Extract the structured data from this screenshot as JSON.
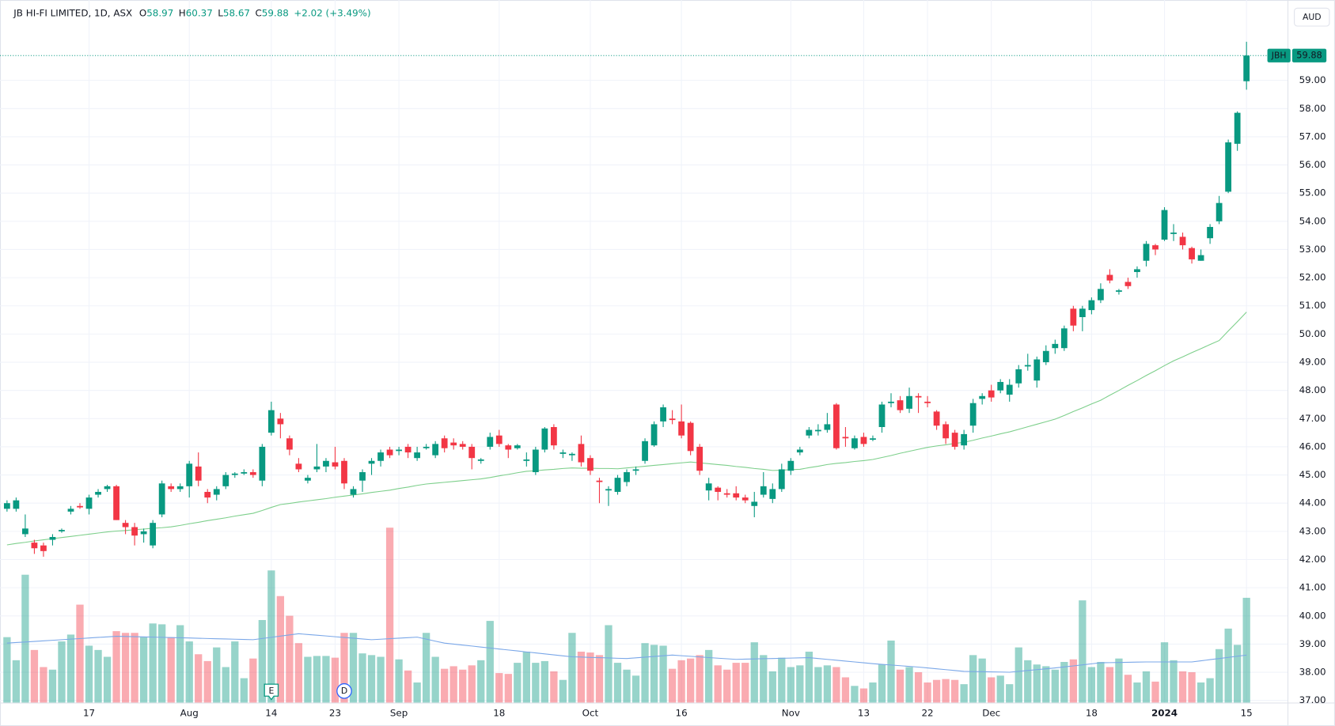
{
  "chart_data": {
    "type": "candlestick",
    "title": "JB HI-FI LIMITED, 1D, ASX",
    "ohlc_labels": [
      "O",
      "H",
      "L",
      "C"
    ],
    "change": "+2.02 (+3.49%)",
    "symbol": "JBH",
    "currency": "AUD",
    "up_color": "#089981",
    "down_color": "#f23645",
    "ma_color": "#7dcf8b",
    "volume_ma_color": "#7aa7e8",
    "grid": true,
    "ylim": [
      36.91,
      61.7
    ],
    "yticks": [
      {
        "value": 37,
        "label": "37.00"
      },
      {
        "value": 38,
        "label": "38.00"
      },
      {
        "value": 39,
        "label": "39.00"
      },
      {
        "value": 40,
        "label": "40.00"
      },
      {
        "value": 41,
        "label": "41.00"
      },
      {
        "value": 42,
        "label": "42.00"
      },
      {
        "value": 43,
        "label": "43.00"
      },
      {
        "value": 44,
        "label": "44.00"
      },
      {
        "value": 45,
        "label": "45.00"
      },
      {
        "value": 46,
        "label": "46.00"
      },
      {
        "value": 47,
        "label": "47.00"
      },
      {
        "value": 48,
        "label": "48.00"
      },
      {
        "value": 49,
        "label": "49.00"
      },
      {
        "value": 50,
        "label": "50.00"
      },
      {
        "value": 51,
        "label": "51.00"
      },
      {
        "value": 52,
        "label": "52.00"
      },
      {
        "value": 53,
        "label": "53.00"
      },
      {
        "value": 54,
        "label": "54.00"
      },
      {
        "value": 55,
        "label": "55.00"
      },
      {
        "value": 56,
        "label": "56.00"
      },
      {
        "value": 57,
        "label": "57.00"
      },
      {
        "value": 58,
        "label": "58.00"
      },
      {
        "value": 59,
        "label": "59.00"
      }
    ],
    "categories": [
      null,
      null,
      null,
      null,
      null,
      null,
      null,
      null,
      null,
      "17",
      null,
      null,
      null,
      null,
      null,
      null,
      null,
      null,
      null,
      null,
      "Aug",
      null,
      null,
      null,
      null,
      null,
      null,
      null,
      null,
      "14",
      null,
      null,
      null,
      null,
      null,
      null,
      "23",
      null,
      null,
      null,
      null,
      null,
      null,
      "Sep",
      null,
      null,
      null,
      null,
      null,
      null,
      null,
      null,
      null,
      null,
      "18",
      null,
      null,
      null,
      null,
      null,
      null,
      null,
      null,
      null,
      "Oct",
      null,
      null,
      null,
      null,
      null,
      null,
      null,
      null,
      null,
      "16",
      null,
      null,
      null,
      null,
      null,
      null,
      null,
      null,
      null,
      null,
      null,
      "Nov",
      null,
      null,
      null,
      null,
      null,
      null,
      null,
      "13",
      null,
      null,
      null,
      null,
      null,
      null,
      "22",
      null,
      null,
      null,
      null,
      null,
      null,
      "Dec",
      null,
      null,
      null,
      null,
      null,
      null,
      null,
      null,
      null,
      null,
      "18",
      null,
      null,
      null,
      null,
      null,
      null,
      null,
      "2024",
      null,
      null,
      null,
      null,
      null,
      null,
      null,
      null,
      "15"
    ],
    "bold_categories": [
      "2024"
    ],
    "events": [
      {
        "label": "E",
        "category": 29
      },
      {
        "label": "D",
        "category": 37
      }
    ],
    "open": [
      43.8,
      43.8,
      42.9,
      42.6,
      42.5,
      42.7,
      43.0,
      43.7,
      43.9,
      43.8,
      44.3,
      44.5,
      44.6,
      43.3,
      43.15,
      42.9,
      42.5,
      43.6,
      44.6,
      44.5,
      44.6,
      45.3,
      44.4,
      44.3,
      44.6,
      45.0,
      45.05,
      45.1,
      44.8,
      46.5,
      47.0,
      46.3,
      45.4,
      44.8,
      45.2,
      45.3,
      45.45,
      45.5,
      44.3,
      44.8,
      45.4,
      45.5,
      45.9,
      45.85,
      46.0,
      45.6,
      45.95,
      45.7,
      46.3,
      46.15,
      46.1,
      46.0,
      45.5,
      46.0,
      46.4,
      46.05,
      45.95,
      45.5,
      45.1,
      45.9,
      46.7,
      45.75,
      45.7,
      46.1,
      45.6,
      44.8,
      44.45,
      44.4,
      44.75,
      45.15,
      45.5,
      46.05,
      46.9,
      47.0,
      46.9,
      46.85,
      46.0,
      44.45,
      44.55,
      44.35,
      44.35,
      44.2,
      43.9,
      44.3,
      44.15,
      44.5,
      45.15,
      45.8,
      46.4,
      46.55,
      46.6,
      47.5,
      46.35,
      45.95,
      46.35,
      46.25,
      46.7,
      47.55,
      47.65,
      47.35,
      47.8,
      47.6,
      47.25,
      46.8,
      46.5,
      46.05,
      46.75,
      47.7,
      48.0,
      48.0,
      47.85,
      48.25,
      48.85,
      48.35,
      49.0,
      49.5,
      49.5,
      50.9,
      50.6,
      50.85,
      51.2,
      52.1,
      51.5,
      51.85,
      52.2,
      52.6,
      53.15,
      53.35,
      53.55,
      53.45,
      53.05,
      52.6,
      53.4,
      54.0,
      55.05,
      56.75,
      58.97
    ],
    "high": [
      44.1,
      44.2,
      43.6,
      42.7,
      42.6,
      42.9,
      43.1,
      43.9,
      44.0,
      44.3,
      44.5,
      44.65,
      44.65,
      43.4,
      43.3,
      43.1,
      43.4,
      44.8,
      44.7,
      44.7,
      45.5,
      45.8,
      44.5,
      44.6,
      45.1,
      45.1,
      45.2,
      45.2,
      46.1,
      47.6,
      47.2,
      46.4,
      45.6,
      45.0,
      46.1,
      45.6,
      46.0,
      45.6,
      44.6,
      45.2,
      45.6,
      45.9,
      46.0,
      46.0,
      46.1,
      46.0,
      46.1,
      46.2,
      46.4,
      46.3,
      46.2,
      46.1,
      45.6,
      46.5,
      46.6,
      46.1,
      46.1,
      45.8,
      46.0,
      46.7,
      46.8,
      45.9,
      45.8,
      46.4,
      45.7,
      44.9,
      44.6,
      45.0,
      45.2,
      45.3,
      46.3,
      46.9,
      47.5,
      47.3,
      47.5,
      46.9,
      46.1,
      44.9,
      44.6,
      44.5,
      44.6,
      44.3,
      44.4,
      45.1,
      44.7,
      45.4,
      45.6,
      46.0,
      46.7,
      46.8,
      47.2,
      47.55,
      46.7,
      46.4,
      46.5,
      46.4,
      47.6,
      47.9,
      47.8,
      48.1,
      47.9,
      47.8,
      47.3,
      46.9,
      46.6,
      46.6,
      47.7,
      47.9,
      48.2,
      48.4,
      48.4,
      48.9,
      49.3,
      49.2,
      49.6,
      49.8,
      50.3,
      51.0,
      51.0,
      51.3,
      51.8,
      52.3,
      51.6,
      52.0,
      52.4,
      53.3,
      53.2,
      54.5,
      53.9,
      53.6,
      53.1,
      53.0,
      53.9,
      54.9,
      56.9,
      57.9,
      60.37
    ],
    "low": [
      43.7,
      43.7,
      42.8,
      42.2,
      42.1,
      42.5,
      42.95,
      43.6,
      43.8,
      43.6,
      44.2,
      44.4,
      43.4,
      42.9,
      42.5,
      42.6,
      42.4,
      43.5,
      44.4,
      44.4,
      44.2,
      44.6,
      44.0,
      44.1,
      44.5,
      44.9,
      45.0,
      44.9,
      44.6,
      46.4,
      46.3,
      45.7,
      45.1,
      44.7,
      45.1,
      45.1,
      45.2,
      44.5,
      44.2,
      44.4,
      45.0,
      45.3,
      45.6,
      45.7,
      45.6,
      45.5,
      45.9,
      45.6,
      45.8,
      45.9,
      45.9,
      45.2,
      45.4,
      45.9,
      46.0,
      45.6,
      45.9,
      45.3,
      45.0,
      45.8,
      45.9,
      45.6,
      45.5,
      45.3,
      45.0,
      44.0,
      43.9,
      44.3,
      44.6,
      45.0,
      45.4,
      46.0,
      46.7,
      46.8,
      46.3,
      45.7,
      45.0,
      44.1,
      44.1,
      44.2,
      44.1,
      44.0,
      43.5,
      44.2,
      44.0,
      44.4,
      45.0,
      45.7,
      46.3,
      46.4,
      46.5,
      45.9,
      46.0,
      45.9,
      46.0,
      46.2,
      46.5,
      47.4,
      47.2,
      47.2,
      47.2,
      47.4,
      46.6,
      46.1,
      45.9,
      45.9,
      46.5,
      47.5,
      47.6,
      47.9,
      47.6,
      48.1,
      48.7,
      48.1,
      48.9,
      49.3,
      49.4,
      50.1,
      50.1,
      50.7,
      51.1,
      51.8,
      51.4,
      51.6,
      52.0,
      52.4,
      52.8,
      53.3,
      53.3,
      53.0,
      52.5,
      52.6,
      53.2,
      53.9,
      55.0,
      56.5,
      58.67
    ],
    "close": [
      44.0,
      44.1,
      43.1,
      42.4,
      42.3,
      42.8,
      43.05,
      43.8,
      43.85,
      44.2,
      44.4,
      44.6,
      43.4,
      43.15,
      42.85,
      43.0,
      43.3,
      44.7,
      44.5,
      44.6,
      45.4,
      44.8,
      44.2,
      44.5,
      45.0,
      45.05,
      45.1,
      45.0,
      46.0,
      47.3,
      46.8,
      45.9,
      45.2,
      44.9,
      45.3,
      45.5,
      45.3,
      44.7,
      44.5,
      45.1,
      45.5,
      45.8,
      45.7,
      45.9,
      45.8,
      45.8,
      46.0,
      46.1,
      45.95,
      46.05,
      46.0,
      45.6,
      45.55,
      46.35,
      46.1,
      45.9,
      46.05,
      45.55,
      45.9,
      46.65,
      46.05,
      45.8,
      45.75,
      45.45,
      45.15,
      44.75,
      44.5,
      44.9,
      45.1,
      45.2,
      46.2,
      46.8,
      47.4,
      46.95,
      46.4,
      45.85,
      45.15,
      44.7,
      44.4,
      44.3,
      44.2,
      44.1,
      44.05,
      44.6,
      44.5,
      45.2,
      45.5,
      45.9,
      46.6,
      46.6,
      46.8,
      45.95,
      46.3,
      46.3,
      46.1,
      46.3,
      47.5,
      47.6,
      47.3,
      47.8,
      47.75,
      47.55,
      46.75,
      46.3,
      46.0,
      46.45,
      47.55,
      47.8,
      47.75,
      48.3,
      48.2,
      48.75,
      48.9,
      49.1,
      49.4,
      49.65,
      50.2,
      50.3,
      50.9,
      51.2,
      51.6,
      51.9,
      51.55,
      51.7,
      52.3,
      53.2,
      53.0,
      54.4,
      53.6,
      53.15,
      52.65,
      52.8,
      53.8,
      54.65,
      56.8,
      57.85,
      59.88
    ],
    "volume": [
      77,
      50,
      150,
      62,
      42,
      39,
      72,
      80,
      115,
      67,
      62,
      54,
      84,
      82,
      82,
      77,
      93,
      92,
      77,
      91,
      72,
      57,
      49,
      65,
      42,
      72,
      29,
      52,
      97,
      155,
      125,
      102,
      70,
      54,
      55,
      55,
      53,
      82,
      82,
      58,
      56,
      54,
      205,
      51,
      38,
      24,
      82,
      54,
      40,
      43,
      39,
      44,
      50,
      96,
      35,
      34,
      47,
      60,
      47,
      49,
      37,
      27,
      82,
      60,
      59,
      56,
      91,
      47,
      39,
      32,
      70,
      68,
      67,
      40,
      50,
      52,
      56,
      62,
      44,
      39,
      47,
      47,
      71,
      56,
      37,
      53,
      42,
      44,
      60,
      42,
      44,
      42,
      30,
      20,
      17,
      24,
      45,
      73,
      39,
      42,
      36,
      24,
      27,
      28,
      27,
      22,
      56,
      52,
      30,
      32,
      22,
      65,
      50,
      45,
      43,
      39,
      48,
      51,
      120,
      42,
      48,
      42,
      52,
      33,
      24,
      37,
      25,
      71,
      50,
      37,
      36,
      24,
      29,
      63,
      87,
      68,
      123
    ],
    "ma": [
      42.52,
      42.57,
      42.61,
      42.66,
      42.7,
      42.74,
      42.78,
      42.82,
      42.86,
      42.9,
      42.94,
      42.98,
      43.01,
      43.03,
      43.06,
      43.08,
      43.11,
      43.13,
      43.16,
      43.21,
      43.27,
      43.32,
      43.38,
      43.43,
      43.48,
      43.54,
      43.59,
      43.64,
      43.74,
      43.85,
      43.95,
      43.99,
      44.04,
      44.08,
      44.12,
      44.16,
      44.21,
      44.25,
      44.29,
      44.33,
      44.38,
      44.42,
      44.46,
      44.52,
      44.57,
      44.63,
      44.68,
      44.71,
      44.74,
      44.77,
      44.8,
      44.83,
      44.86,
      44.91,
      44.97,
      45.02,
      45.08,
      45.13,
      45.15,
      45.18,
      45.2,
      45.23,
      45.25,
      45.24,
      45.24,
      45.23,
      45.23,
      45.22,
      45.25,
      45.28,
      45.31,
      45.34,
      45.37,
      45.4,
      45.43,
      45.46,
      45.43,
      45.4,
      45.37,
      45.34,
      45.3,
      45.27,
      45.23,
      45.2,
      45.16,
      45.17,
      45.19,
      45.2,
      45.26,
      45.31,
      45.37,
      45.41,
      45.44,
      45.48,
      45.51,
      45.55,
      45.62,
      45.69,
      45.77,
      45.84,
      45.91,
      45.98,
      46.03,
      46.07,
      46.12,
      46.16,
      46.23,
      46.31,
      46.38,
      46.46,
      46.53,
      46.62,
      46.71,
      46.8,
      46.89,
      46.98,
      47.11,
      47.25,
      47.38,
      47.52,
      47.65,
      47.83,
      48.0,
      48.18,
      48.35,
      48.53,
      48.7,
      48.88,
      49.05,
      49.19,
      49.34,
      49.48,
      49.63,
      49.77,
      50.11,
      50.44,
      50.78
    ],
    "volume_ma": [
      70,
      70.7,
      71.3,
      72,
      72.7,
      73.3,
      74,
      74.7,
      75.3,
      76,
      76.7,
      77.3,
      78,
      77.8,
      77.5,
      77.3,
      77,
      76.8,
      76.5,
      76.3,
      76,
      75.7,
      75.4,
      75.1,
      74.9,
      74.6,
      74.3,
      74,
      75.4,
      76.8,
      78.2,
      79.6,
      81,
      80.1,
      79.3,
      78.4,
      77.5,
      76.6,
      75.8,
      74.9,
      74,
      74.6,
      75.2,
      75.8,
      76.4,
      77,
      74.7,
      72.3,
      70,
      68.9,
      67.7,
      66.6,
      65.4,
      64.3,
      63.1,
      62,
      60.9,
      59.7,
      58.6,
      57.4,
      56.3,
      55.1,
      54,
      53.7,
      53.3,
      53,
      52.7,
      52.3,
      52,
      52.8,
      53.6,
      54.4,
      55.2,
      56,
      55.3,
      54.6,
      53.9,
      53.1,
      52.4,
      51.7,
      51,
      51.3,
      51.5,
      51.8,
      52,
      52.3,
      52.5,
      52.8,
      53,
      52,
      51,
      50,
      49,
      48,
      47,
      46,
      45.2,
      44.4,
      43.6,
      42.8,
      42,
      41,
      40,
      39,
      38,
      37,
      36.8,
      36.6,
      36.4,
      36.2,
      36,
      37,
      38,
      39,
      40,
      41,
      42.2,
      43.4,
      44.6,
      45.8,
      47,
      47.2,
      47.4,
      47.6,
      47.8,
      48,
      48,
      48,
      48,
      48,
      48,
      49.3,
      50.7,
      52,
      53.3,
      54.7,
      56
    ]
  }
}
